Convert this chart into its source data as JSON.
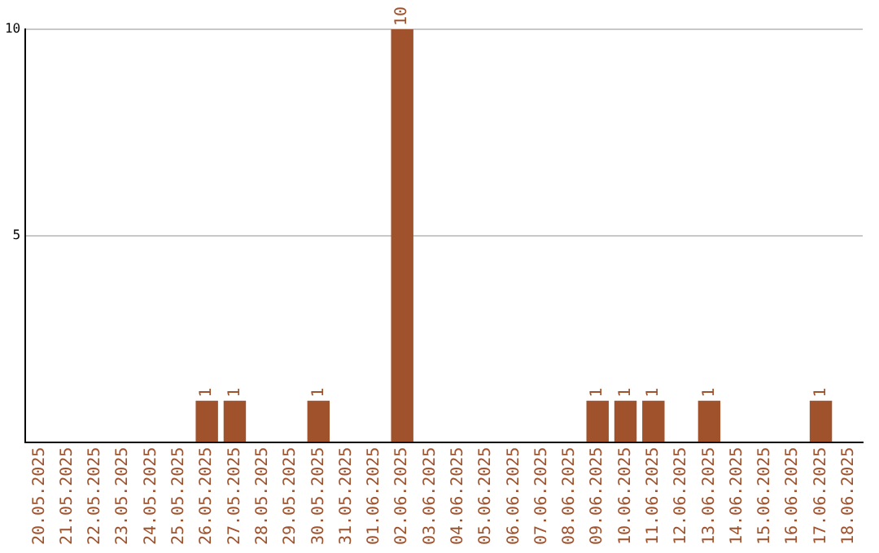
{
  "chart_data": {
    "type": "bar",
    "categories": [
      "20.05.2025",
      "21.05.2025",
      "22.05.2025",
      "23.05.2025",
      "24.05.2025",
      "25.05.2025",
      "26.05.2025",
      "27.05.2025",
      "28.05.2025",
      "29.05.2025",
      "30.05.2025",
      "31.05.2025",
      "01.06.2025",
      "02.06.2025",
      "03.06.2025",
      "04.06.2025",
      "05.06.2025",
      "06.06.2025",
      "07.06.2025",
      "08.06.2025",
      "09.06.2025",
      "10.06.2025",
      "11.06.2025",
      "12.06.2025",
      "13.06.2025",
      "14.06.2025",
      "15.06.2025",
      "16.06.2025",
      "17.06.2025",
      "18.06.2025"
    ],
    "values": [
      0,
      0,
      0,
      0,
      0,
      0,
      1,
      1,
      0,
      0,
      1,
      0,
      0,
      10,
      0,
      0,
      0,
      0,
      0,
      0,
      1,
      1,
      1,
      0,
      1,
      0,
      0,
      0,
      1,
      0
    ],
    "value_labels": [
      null,
      null,
      null,
      null,
      null,
      null,
      "1",
      "1",
      null,
      null,
      "1",
      null,
      null,
      "10",
      null,
      null,
      null,
      null,
      null,
      null,
      "1",
      "1",
      "1",
      null,
      "1",
      null,
      null,
      null,
      "1",
      null
    ],
    "color": "#a0522d",
    "ylim": [
      0,
      10
    ],
    "yticks": [
      5,
      10
    ],
    "grid": "y",
    "legend": false
  }
}
